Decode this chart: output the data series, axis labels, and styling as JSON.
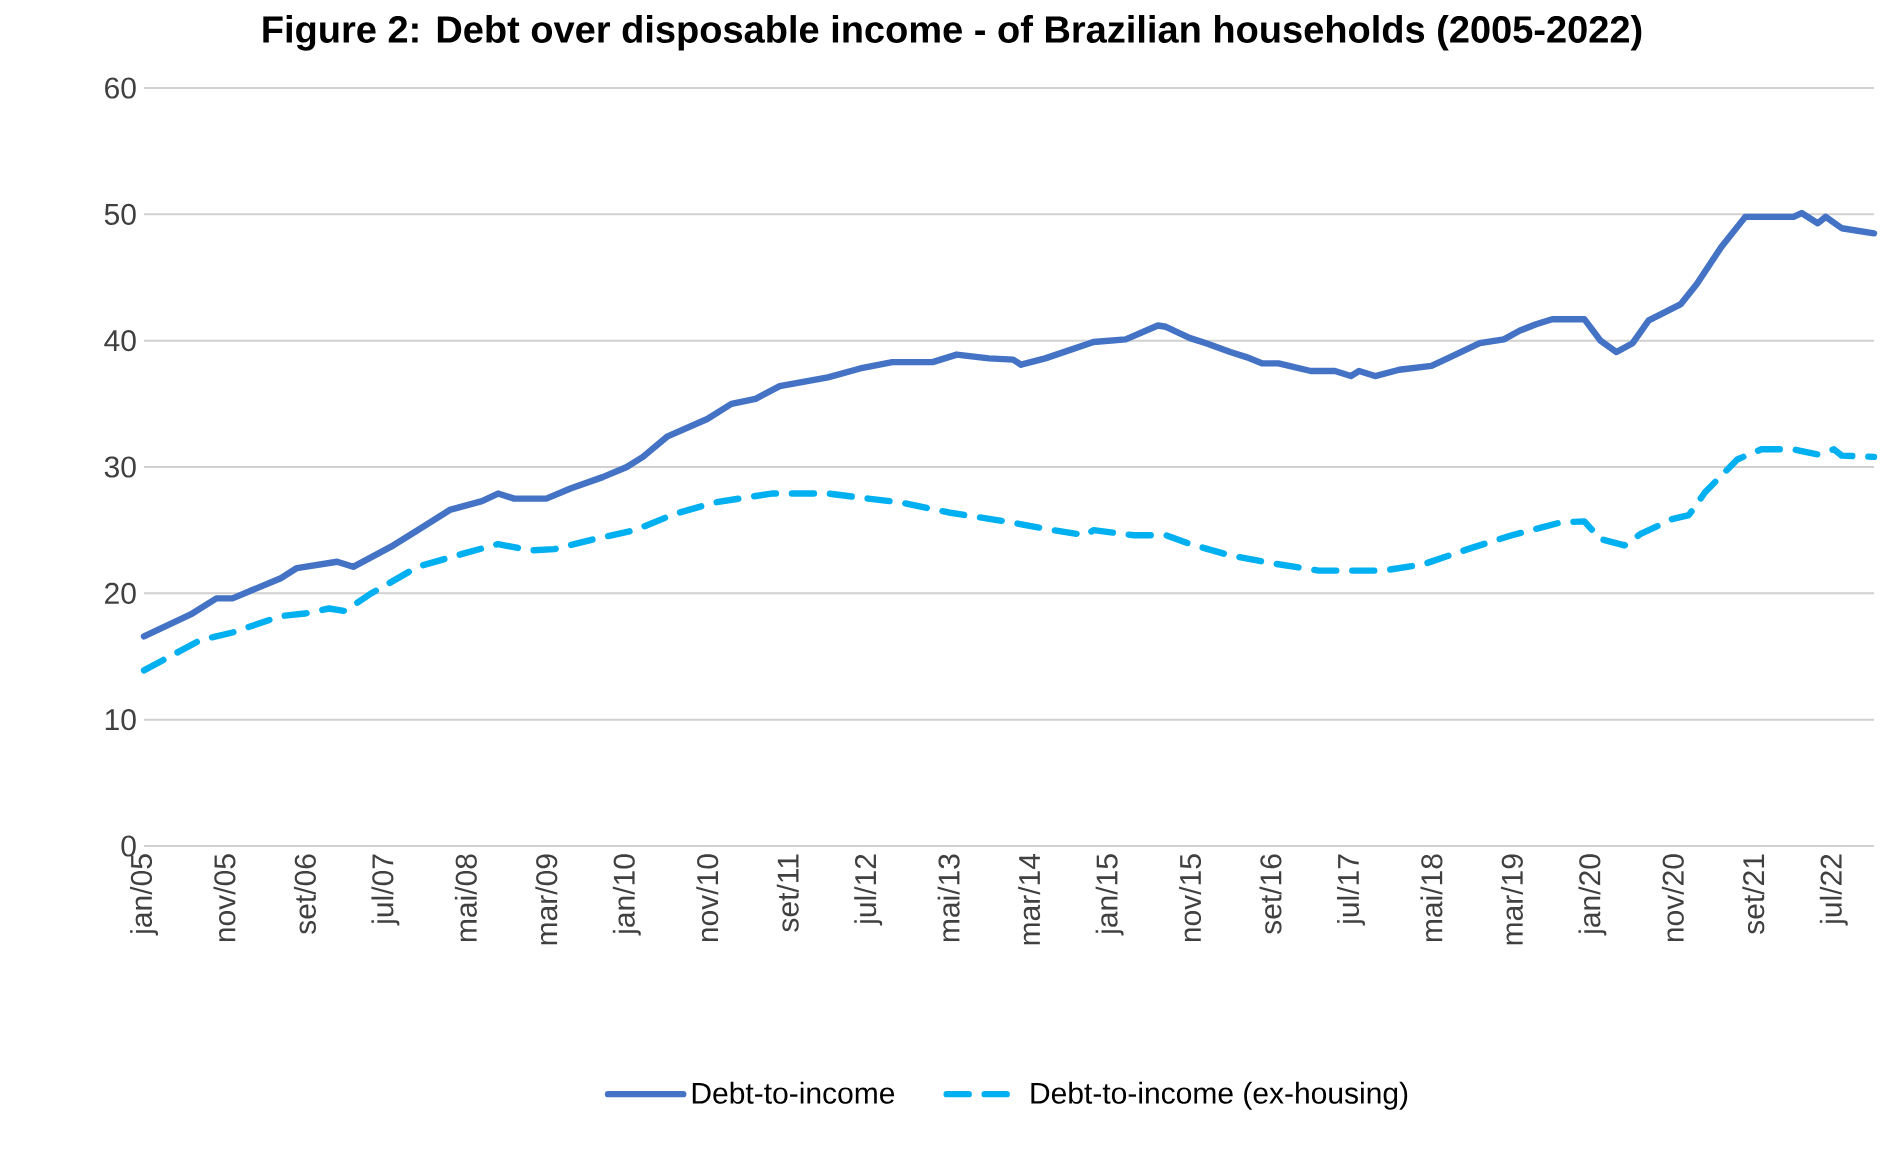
{
  "chart_data": {
    "type": "line",
    "title": "Figure 2: Debt over disposable income - of Brazilian households (2005-2022)",
    "x": [
      "2005-01",
      "2005-07",
      "2005-10",
      "2005-12",
      "2006-06",
      "2006-08",
      "2007-01",
      "2007-03",
      "2007-08",
      "2007-11",
      "2008-03",
      "2008-07",
      "2008-09",
      "2008-11",
      "2009-03",
      "2009-06",
      "2009-10",
      "2010-01",
      "2010-03",
      "2010-06",
      "2010-11",
      "2011-02",
      "2011-05",
      "2011-08",
      "2012-02",
      "2012-06",
      "2012-10",
      "2013-03",
      "2013-06",
      "2013-10",
      "2014-01",
      "2014-02",
      "2014-05",
      "2014-11",
      "2015-03",
      "2015-07",
      "2015-08",
      "2015-11",
      "2016-01",
      "2016-04",
      "2016-06",
      "2016-08",
      "2016-10",
      "2017-02",
      "2017-05",
      "2017-07",
      "2017-08",
      "2017-10",
      "2018-01",
      "2018-05",
      "2018-07",
      "2018-11",
      "2019-02",
      "2019-04",
      "2019-06",
      "2019-08",
      "2019-12",
      "2020-02",
      "2020-04",
      "2020-06",
      "2020-08",
      "2020-12",
      "2021-02",
      "2021-05",
      "2021-08",
      "2022-02",
      "2022-03",
      "2022-05",
      "2022-06",
      "2022-08",
      "2022-12"
    ],
    "series": [
      {
        "name": "Debt-to-income",
        "color": "#4472c4",
        "line_style": "solid",
        "values": [
          16.6,
          18.4,
          19.6,
          19.6,
          21.2,
          22.0,
          22.5,
          22.1,
          23.8,
          25.0,
          26.6,
          27.3,
          27.9,
          27.5,
          27.5,
          28.3,
          29.2,
          30.0,
          30.8,
          32.4,
          33.8,
          35.0,
          35.4,
          36.4,
          37.1,
          37.8,
          38.3,
          38.3,
          38.9,
          38.6,
          38.5,
          38.1,
          38.6,
          39.9,
          40.1,
          41.2,
          41.1,
          40.2,
          39.8,
          39.1,
          38.7,
          38.2,
          38.2,
          37.6,
          37.6,
          37.2,
          37.6,
          37.2,
          37.7,
          38.0,
          38.6,
          39.8,
          40.1,
          40.8,
          41.3,
          41.7,
          41.7,
          40.0,
          39.1,
          39.8,
          41.6,
          42.9,
          44.5,
          47.4,
          49.8,
          49.8,
          50.1,
          49.3,
          49.8,
          48.9,
          48.5
        ]
      },
      {
        "name": "Debt-to-income (ex-housing)",
        "color": "#00b0f0",
        "line_style": "dashed",
        "x": [
          "2005-01",
          "2005-08",
          "2005-12",
          "2006-06",
          "2006-09",
          "2006-12",
          "2007-02",
          "2007-05",
          "2007-11",
          "2008-05",
          "2008-09",
          "2009-01",
          "2009-04",
          "2009-09",
          "2010-02",
          "2010-07",
          "2010-12",
          "2011-07",
          "2012-02",
          "2012-07",
          "2012-11",
          "2013-05",
          "2013-12",
          "2014-06",
          "2014-10",
          "2014-11",
          "2015-04",
          "2015-08",
          "2015-11",
          "2016-04",
          "2016-09",
          "2017-03",
          "2017-11",
          "2018-04",
          "2018-10",
          "2019-03",
          "2019-09",
          "2019-12",
          "2020-02",
          "2020-05",
          "2020-07",
          "2020-11",
          "2021-01",
          "2021-03",
          "2021-07",
          "2021-10",
          "2022-02",
          "2022-05",
          "2022-07",
          "2022-08",
          "2022-12"
        ],
        "values": [
          13.9,
          16.3,
          16.9,
          18.2,
          18.4,
          18.8,
          18.6,
          19.9,
          22.1,
          23.2,
          23.9,
          23.4,
          23.5,
          24.3,
          25.0,
          26.3,
          27.2,
          27.9,
          27.9,
          27.5,
          27.2,
          26.4,
          25.7,
          25.0,
          24.6,
          25.0,
          24.6,
          24.6,
          23.9,
          23.0,
          22.4,
          21.8,
          21.8,
          22.3,
          23.6,
          24.6,
          25.6,
          25.7,
          24.3,
          23.8,
          24.7,
          25.9,
          26.2,
          28.0,
          30.6,
          31.4,
          31.4,
          31.0,
          31.4,
          30.9,
          30.8
        ]
      }
    ],
    "xlim": [
      "2005-01",
      "2022-12"
    ],
    "xticks": [
      {
        "value": "2005-01",
        "label": "jan/05"
      },
      {
        "value": "2005-11",
        "label": "nov/05"
      },
      {
        "value": "2006-09",
        "label": "set/06"
      },
      {
        "value": "2007-07",
        "label": "jul/07"
      },
      {
        "value": "2008-05",
        "label": "mai/08"
      },
      {
        "value": "2009-03",
        "label": "mar/09"
      },
      {
        "value": "2010-01",
        "label": "jan/10"
      },
      {
        "value": "2010-11",
        "label": "nov/10"
      },
      {
        "value": "2011-09",
        "label": "set/11"
      },
      {
        "value": "2012-07",
        "label": "jul/12"
      },
      {
        "value": "2013-05",
        "label": "mai/13"
      },
      {
        "value": "2014-03",
        "label": "mar/14"
      },
      {
        "value": "2015-01",
        "label": "jan/15"
      },
      {
        "value": "2015-11",
        "label": "nov/15"
      },
      {
        "value": "2016-09",
        "label": "set/16"
      },
      {
        "value": "2017-07",
        "label": "jul/17"
      },
      {
        "value": "2018-05",
        "label": "mai/18"
      },
      {
        "value": "2019-03",
        "label": "mar/19"
      },
      {
        "value": "2020-01",
        "label": "jan/20"
      },
      {
        "value": "2020-11",
        "label": "nov/20"
      },
      {
        "value": "2021-09",
        "label": "set/21"
      },
      {
        "value": "2022-07",
        "label": "jul/22"
      }
    ],
    "ylim": [
      0,
      60
    ],
    "yticks": [
      0,
      10,
      20,
      30,
      40,
      50,
      60
    ],
    "grid": "y",
    "legend": "bottom",
    "marker": "none"
  }
}
